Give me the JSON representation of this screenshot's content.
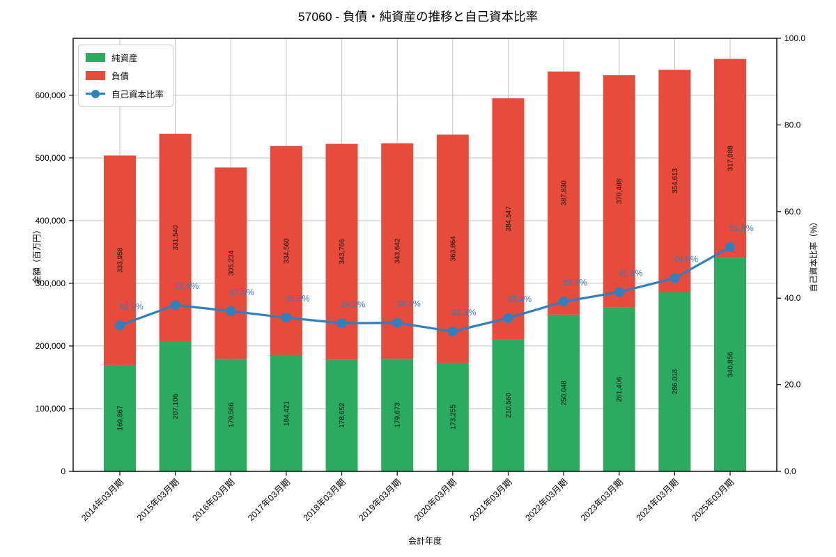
{
  "page": {
    "background": "#ffffff"
  },
  "chart_data": {
    "type": "bar",
    "variant": "stacked-bars-with-line",
    "title": "57060 - 負債・純資産の推移と自己資本比率",
    "xlabel": "会計年度",
    "ylabel_left": "金額（百万円）",
    "ylabel_right": "自己資本比率（%）",
    "categories": [
      "2014年03月期",
      "2015年03月期",
      "2016年03月期",
      "2017年03月期",
      "2018年03月期",
      "2019年03月期",
      "2020年03月期",
      "2021年03月期",
      "2022年03月期",
      "2023年03月期",
      "2024年03月期",
      "2025年03月期"
    ],
    "series": [
      {
        "name": "純資産",
        "kind": "bar",
        "stack_order": 0,
        "color": "#2aab5f",
        "values": [
          169867,
          207106,
          179566,
          184421,
          178652,
          179673,
          173255,
          210560,
          250048,
          261406,
          286018,
          340856
        ]
      },
      {
        "name": "負債",
        "kind": "bar",
        "stack_order": 1,
        "color": "#e64b3c",
        "values": [
          333958,
          331540,
          305234,
          334560,
          343766,
          343642,
          363864,
          384547,
          387830,
          370488,
          354613,
          317088
        ]
      },
      {
        "name": "自己資本比率",
        "kind": "line",
        "axis": "right",
        "color": "#2e80bf",
        "values": [
          33.7,
          38.4,
          37.0,
          35.5,
          34.2,
          34.3,
          32.3,
          35.4,
          39.2,
          41.4,
          44.6,
          51.8
        ],
        "point_labels": [
          "33.7%",
          "38.4%",
          "37.0%",
          "35.5%",
          "34.2%",
          "34.3%",
          "32.3%",
          "35.4%",
          "39.2%",
          "41.4%",
          "44.6%",
          "51.8%"
        ]
      }
    ],
    "bar_value_labels": [
      "169,867",
      "207,106",
      "179,566",
      "184,421",
      "178,652",
      "179,673",
      "173,255",
      "210,560",
      "250,048",
      "261,406",
      "286,018",
      "340,856"
    ],
    "bar_value_labels_liabilities": [
      "333,958",
      "331,540",
      "305,234",
      "334,560",
      "343,766",
      "343,642",
      "363,864",
      "384,547",
      "387,830",
      "370,488",
      "354,613",
      "317,088"
    ],
    "left_axis": {
      "lim": [
        0,
        690841
      ],
      "tick_values": [
        0,
        100000,
        200000,
        300000,
        400000,
        500000,
        600000
      ],
      "tick_labels": [
        "0",
        "100,000",
        "200,000",
        "300,000",
        "400,000",
        "500,000",
        "600,000"
      ]
    },
    "right_axis": {
      "lim": [
        0,
        100
      ],
      "tick_values": [
        0,
        20,
        40,
        60,
        80,
        100
      ],
      "tick_labels": [
        "0.0",
        "20.0",
        "40.0",
        "60.0",
        "80.0",
        "100.0"
      ]
    },
    "grid": {
      "x": true,
      "y_left": true,
      "color": "#bfbfbf"
    },
    "legend": {
      "position": "upper-left"
    }
  }
}
